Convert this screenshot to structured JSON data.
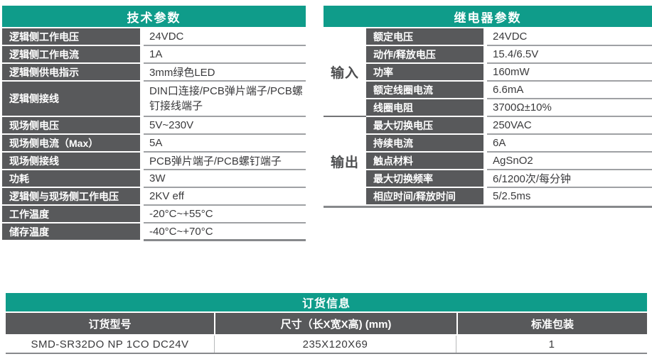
{
  "colors": {
    "teal_header": "#0F9C8A",
    "label_cell_gray": "#58595B",
    "row_line_gray": "#9FA1A4",
    "thick_border_gray": "#87898C",
    "value_text": "#3A3A3C"
  },
  "tech_table": {
    "title": "技术参数",
    "rows": [
      {
        "label": "逻辑侧工作电压",
        "value": "24VDC"
      },
      {
        "label": "逻辑侧工作电流",
        "value": "1A"
      },
      {
        "label": "逻辑侧供电指示",
        "value": "3mm绿色LED"
      },
      {
        "label": "逻辑侧接线",
        "value": "DIN口连接/PCB弹片端子/PCB螺钉接线端子",
        "tall": true
      },
      {
        "label": "现场侧电压",
        "value": "5V~230V"
      },
      {
        "label": "现场侧电流（Max）",
        "value": "5A"
      },
      {
        "label": "现场侧接线",
        "value": "PCB弹片端子/PCB螺钉端子"
      },
      {
        "label": "功耗",
        "value": "3W"
      },
      {
        "label": "逻辑侧与现场侧工作电压",
        "value": "2KV eff"
      },
      {
        "label": "工作温度",
        "value": "-20°C~+55°C"
      },
      {
        "label": "储存温度",
        "value": "-40°C~+70°C"
      }
    ]
  },
  "relay_table": {
    "title": "继电器参数",
    "groups": [
      {
        "name": "输入",
        "rows": [
          {
            "label": "额定电压",
            "value": "24VDC"
          },
          {
            "label": "动作/释放电压",
            "value": "15.4/6.5V"
          },
          {
            "label": "功率",
            "value": "160mW"
          },
          {
            "label": "额定线圈电流",
            "value": "6.6mA"
          },
          {
            "label": "线圈电阻",
            "value": "3700Ω±10%"
          }
        ]
      },
      {
        "name": "输出",
        "rows": [
          {
            "label": "最大切换电压",
            "value": "250VAC"
          },
          {
            "label": "持续电流",
            "value": "6A"
          },
          {
            "label": "触点材料",
            "value": "AgSnO2"
          },
          {
            "label": "最大切换频率",
            "value": "6/1200次/每分钟"
          },
          {
            "label": "相应时间/释放时间",
            "value": "5/2.5ms"
          }
        ]
      }
    ]
  },
  "order_table": {
    "title": "订货信息",
    "columns": [
      "订货型号",
      "尺寸（长X宽X高) (mm)",
      "标准包装"
    ],
    "rows": [
      [
        "SMD-SR32DO NP 1CO DC24V",
        "235X120X69",
        "1"
      ]
    ]
  }
}
